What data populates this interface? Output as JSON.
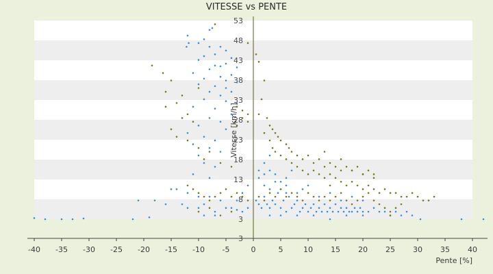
{
  "chart_data": {
    "type": "scatter",
    "title": "VITESSE vs PENTE",
    "xlabel": "Pente [%]",
    "ylabel": "Vitesse [km/h]",
    "xlim": [
      -40,
      42
    ],
    "ylim": [
      3,
      56
    ],
    "x_ticks": [
      "-40",
      "-35",
      "-30",
      "-25",
      "-20",
      "-15",
      "-10",
      "-5",
      "0",
      "5",
      "10",
      "15",
      "20",
      "25",
      "30",
      "35",
      "40"
    ],
    "y_ticks": [
      "53",
      "48",
      "43",
      "38",
      "33",
      "28",
      "23",
      "18",
      "13",
      "8",
      "3",
      "3"
    ],
    "grid": "horizontal bands",
    "legend": "none",
    "series": [
      {
        "color": "#3b8fd6",
        "points": [
          [
            -7.5,
            54
          ],
          [
            -8,
            53.5
          ],
          [
            -12,
            52
          ],
          [
            -11.8,
            50
          ],
          [
            -12.2,
            49
          ],
          [
            -9,
            51
          ],
          [
            -10,
            50
          ],
          [
            -8,
            49
          ],
          [
            -6,
            49
          ],
          [
            -5,
            48
          ],
          [
            -7,
            47
          ],
          [
            -9,
            46.5
          ],
          [
            -4,
            46
          ],
          [
            -10,
            45.5
          ],
          [
            -5,
            44.5
          ],
          [
            -7,
            44
          ],
          [
            -6,
            43.8
          ],
          [
            -3,
            43.5
          ],
          [
            -8,
            43
          ],
          [
            -11,
            42
          ],
          [
            -4,
            41.5
          ],
          [
            -6,
            41
          ],
          [
            -9,
            40.5
          ],
          [
            -5,
            40
          ],
          [
            -3,
            39.5
          ],
          [
            -10,
            39
          ],
          [
            -7,
            38.5
          ],
          [
            -5,
            38
          ],
          [
            -4,
            37
          ],
          [
            -8,
            37
          ],
          [
            -6,
            36
          ],
          [
            -9,
            35
          ],
          [
            -5,
            34.5
          ],
          [
            -3,
            34
          ],
          [
            -11,
            33
          ],
          [
            -7,
            32.5
          ],
          [
            -4,
            31
          ],
          [
            -8,
            30
          ],
          [
            -6,
            29
          ],
          [
            -10,
            28
          ],
          [
            -5,
            27
          ],
          [
            -12,
            26
          ],
          [
            -9,
            25
          ],
          [
            -7,
            24
          ],
          [
            -11,
            23
          ],
          [
            -8,
            22
          ],
          [
            -6,
            21
          ],
          [
            -10,
            20
          ],
          [
            -9,
            18
          ],
          [
            -7,
            17
          ],
          [
            -11,
            15
          ],
          [
            -8,
            14
          ],
          [
            -38,
            3
          ],
          [
            -35,
            3
          ],
          [
            -33,
            3
          ],
          [
            -31,
            3.2
          ],
          [
            -22,
            3
          ],
          [
            -19,
            3.5
          ],
          [
            -15,
            11
          ],
          [
            -14,
            11
          ],
          [
            -12,
            10
          ],
          [
            -10,
            9
          ],
          [
            -21,
            8
          ],
          [
            -18,
            8
          ],
          [
            -16,
            7
          ],
          [
            -13,
            7
          ],
          [
            -12,
            6
          ],
          [
            -10,
            6
          ],
          [
            -9,
            7
          ],
          [
            -7,
            5
          ],
          [
            -5,
            6
          ],
          [
            -4,
            6
          ],
          [
            -3,
            5.5
          ],
          [
            -2,
            5
          ],
          [
            -1,
            6
          ],
          [
            -3,
            8
          ],
          [
            -6,
            8
          ],
          [
            -8,
            9
          ],
          [
            -2,
            10
          ],
          [
            -1,
            12
          ],
          [
            -9,
            4
          ],
          [
            -7,
            4
          ],
          [
            0.5,
            8
          ],
          [
            1,
            7
          ],
          [
            1.5,
            6
          ],
          [
            2,
            9
          ],
          [
            2.5,
            7
          ],
          [
            3,
            6
          ],
          [
            3.5,
            8
          ],
          [
            4,
            7
          ],
          [
            4.5,
            10
          ],
          [
            5,
            6
          ],
          [
            5.5,
            8
          ],
          [
            6,
            5
          ],
          [
            6.5,
            9
          ],
          [
            7,
            6
          ],
          [
            7.5,
            7
          ],
          [
            8,
            8
          ],
          [
            8.5,
            5
          ],
          [
            9,
            6
          ],
          [
            9.5,
            7
          ],
          [
            10,
            5
          ],
          [
            10.5,
            6
          ],
          [
            11,
            7
          ],
          [
            11.5,
            5
          ],
          [
            12,
            6
          ],
          [
            12.5,
            5
          ],
          [
            13,
            7
          ],
          [
            13.5,
            5
          ],
          [
            14,
            6
          ],
          [
            14.5,
            5
          ],
          [
            15,
            7
          ],
          [
            15.5,
            5
          ],
          [
            16,
            6
          ],
          [
            16.5,
            5
          ],
          [
            17,
            6
          ],
          [
            17.5,
            5
          ],
          [
            18,
            5
          ],
          [
            18.5,
            6
          ],
          [
            19,
            5
          ],
          [
            19.5,
            6
          ],
          [
            20,
            5
          ],
          [
            21,
            5
          ],
          [
            22,
            6
          ],
          [
            23,
            5
          ],
          [
            24,
            5
          ],
          [
            25,
            4
          ],
          [
            26,
            5
          ],
          [
            27,
            4
          ],
          [
            28,
            5
          ],
          [
            29,
            4
          ],
          [
            1,
            14
          ],
          [
            2,
            12
          ],
          [
            3,
            11
          ],
          [
            4,
            15
          ],
          [
            5,
            13
          ],
          [
            6,
            12
          ],
          [
            7,
            16
          ],
          [
            8,
            10
          ],
          [
            9,
            11
          ],
          [
            10,
            12
          ],
          [
            2,
            18
          ],
          [
            3,
            20
          ],
          [
            4,
            13
          ],
          [
            5,
            11
          ],
          [
            6,
            10
          ],
          [
            12,
            9
          ],
          [
            14,
            10
          ],
          [
            16,
            8
          ],
          [
            18,
            9
          ],
          [
            20,
            8
          ],
          [
            1,
            16
          ],
          [
            2,
            15
          ],
          [
            3,
            16
          ],
          [
            6,
            14
          ],
          [
            3,
            4
          ],
          [
            5,
            4
          ],
          [
            8,
            4
          ],
          [
            11,
            4
          ],
          [
            14,
            3
          ],
          [
            17,
            4
          ],
          [
            20,
            4
          ],
          [
            30.5,
            3
          ],
          [
            38,
            3
          ],
          [
            42,
            3
          ],
          [
            -40,
            3.3
          ]
        ]
      },
      {
        "color": "#7a7a1e",
        "points": [
          [
            -7,
            55
          ],
          [
            -18.5,
            44
          ],
          [
            -16.5,
            42
          ],
          [
            -15,
            40
          ],
          [
            -16,
            37
          ],
          [
            -13,
            36
          ],
          [
            -14,
            34
          ],
          [
            -16,
            33
          ],
          [
            -10,
            38
          ],
          [
            -12,
            31
          ],
          [
            -13,
            30
          ],
          [
            -11,
            29
          ],
          [
            -15,
            27
          ],
          [
            -14,
            25
          ],
          [
            -12,
            24
          ],
          [
            -10,
            22
          ],
          [
            -8,
            21
          ],
          [
            -9,
            19
          ],
          [
            -6,
            18
          ],
          [
            -4,
            17
          ],
          [
            -3,
            33
          ],
          [
            -2,
            32
          ],
          [
            -1,
            31
          ],
          [
            -2,
            30
          ],
          [
            -3,
            28
          ],
          [
            -1,
            29
          ],
          [
            -1,
            50
          ],
          [
            0.5,
            47
          ],
          [
            1,
            45
          ],
          [
            2,
            40
          ],
          [
            1.5,
            35
          ],
          [
            2.5,
            30
          ],
          [
            3,
            28
          ],
          [
            3.5,
            27
          ],
          [
            4,
            26
          ],
          [
            4.5,
            25
          ],
          [
            5,
            24
          ],
          [
            6,
            23
          ],
          [
            6.5,
            22
          ],
          [
            7,
            21
          ],
          [
            8,
            20
          ],
          [
            9,
            19
          ],
          [
            10,
            20
          ],
          [
            11,
            18
          ],
          [
            12,
            19
          ],
          [
            13,
            17
          ],
          [
            14,
            18
          ],
          [
            15,
            17
          ],
          [
            16,
            16
          ],
          [
            17,
            17
          ],
          [
            18,
            16
          ],
          [
            19,
            17
          ],
          [
            20,
            15
          ],
          [
            21,
            16
          ],
          [
            22,
            15
          ],
          [
            1,
            31
          ],
          [
            2,
            26
          ],
          [
            3,
            24
          ],
          [
            3.5,
            22
          ],
          [
            4,
            21
          ],
          [
            5,
            20
          ],
          [
            6,
            19
          ],
          [
            7,
            18
          ],
          [
            8,
            17
          ],
          [
            9,
            16
          ],
          [
            10,
            15
          ],
          [
            11,
            16
          ],
          [
            12,
            15
          ],
          [
            13,
            14
          ],
          [
            14,
            15
          ],
          [
            15,
            14
          ],
          [
            16,
            13
          ],
          [
            17,
            12
          ],
          [
            18,
            13
          ],
          [
            19,
            12
          ],
          [
            20,
            11
          ],
          [
            21,
            12
          ],
          [
            22,
            11
          ],
          [
            23,
            10
          ],
          [
            24,
            11
          ],
          [
            25,
            10
          ],
          [
            26,
            10
          ],
          [
            27,
            9
          ],
          [
            28,
            9
          ],
          [
            29,
            10
          ],
          [
            30,
            9
          ],
          [
            31,
            8
          ],
          [
            32,
            8
          ],
          [
            33,
            9
          ],
          [
            -12,
            12
          ],
          [
            -11,
            11
          ],
          [
            -10,
            10
          ],
          [
            -9,
            9
          ],
          [
            -8,
            8
          ],
          [
            -7,
            9
          ],
          [
            -6,
            10
          ],
          [
            -5,
            11
          ],
          [
            -4,
            9
          ],
          [
            -3,
            10
          ],
          [
            -2,
            9
          ],
          [
            -1,
            8
          ],
          [
            -10,
            5
          ],
          [
            -8,
            6
          ],
          [
            -6,
            4
          ],
          [
            -4,
            5
          ],
          [
            1,
            9
          ],
          [
            2,
            8
          ],
          [
            3,
            10
          ],
          [
            4,
            9
          ],
          [
            5,
            11
          ],
          [
            6,
            9
          ],
          [
            7,
            10
          ],
          [
            8,
            9
          ],
          [
            9,
            8
          ],
          [
            10,
            10
          ],
          [
            11,
            9
          ],
          [
            12,
            8
          ],
          [
            13,
            9
          ],
          [
            14,
            8
          ],
          [
            15,
            9
          ],
          [
            16,
            10
          ],
          [
            17,
            8
          ],
          [
            18,
            7
          ],
          [
            19,
            8
          ],
          [
            20,
            9
          ],
          [
            21,
            10
          ],
          [
            22,
            8
          ],
          [
            23,
            7
          ],
          [
            24,
            6
          ],
          [
            25,
            5
          ],
          [
            26,
            6
          ],
          [
            27,
            7
          ],
          [
            14,
            12
          ],
          [
            18,
            16
          ],
          [
            22,
            14
          ],
          [
            13,
            21
          ],
          [
            16,
            19
          ],
          [
            25,
            4
          ],
          [
            20,
            15
          ]
        ]
      }
    ]
  }
}
